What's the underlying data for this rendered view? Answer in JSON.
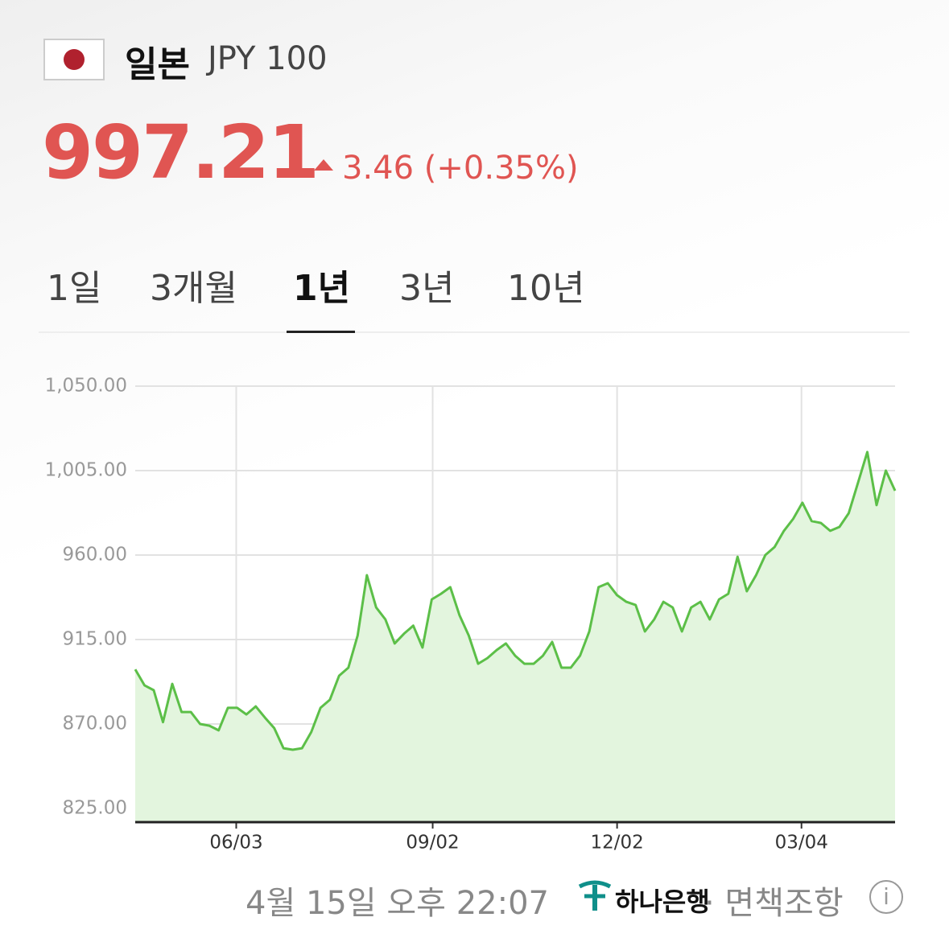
{
  "header": {
    "title": "일본",
    "currency": "JPY 100",
    "price": "997.21",
    "change": "3.46 (+0.35%)"
  },
  "tabs": [
    "1일",
    "3개월",
    "1년",
    "3년",
    "10년"
  ],
  "chart_data": {
    "type": "area",
    "color": "#5cbf48",
    "fill": "#e3f5de",
    "grid": true,
    "values": [
      899.1,
      890.6,
      888.0,
      871.0,
      891.4,
      876.4,
      876.4,
      870.0,
      869.1,
      866.6,
      878.6,
      878.6,
      875.1,
      879.4,
      873.4,
      867.8,
      857.1,
      856.3,
      857.1,
      865.7,
      878.6,
      882.9,
      895.7,
      900.0,
      917.1,
      949.3,
      932.1,
      925.7,
      912.9,
      918.1,
      922.4,
      910.7,
      936.4,
      939.4,
      942.9,
      927.9,
      917.1,
      902.1,
      905.1,
      909.4,
      912.9,
      906.4,
      902.1,
      902.1,
      906.4,
      913.7,
      900.0,
      900.0,
      906.4,
      919.3,
      942.9,
      945.0,
      938.6,
      935.1,
      933.4,
      919.3,
      925.7,
      935.1,
      932.1,
      919.3,
      932.1,
      935.1,
      925.7,
      936.4,
      939.4,
      959.1,
      940.7,
      949.3,
      960.0,
      964.3,
      972.9,
      979.3,
      987.9,
      978.1,
      977.1,
      972.9,
      975.0,
      982.3,
      998.6,
      1014.9,
      986.6,
      1005.0,
      994.3
    ],
    "xlim": [
      0,
      82
    ],
    "xticks": [
      {
        "value": 10.9,
        "label": "06/03"
      },
      {
        "value": 32.1,
        "label": "09/02"
      },
      {
        "value": 52,
        "label": "12/02"
      },
      {
        "value": 71.9,
        "label": "03/04"
      }
    ],
    "ylim": [
      825,
      1050
    ],
    "yticks": [
      {
        "value": 1050,
        "label": "1,050.00"
      },
      {
        "value": 1005,
        "label": "1,005.00"
      },
      {
        "value": 960,
        "label": "960.00"
      },
      {
        "value": 915,
        "label": "915.00"
      },
      {
        "value": 870,
        "label": "870.00"
      },
      {
        "value": 825,
        "label": "825.00"
      }
    ]
  },
  "footer": {
    "timestamp": "4월 15일 오후 22:07",
    "bank": "하나은행",
    "disclaimer": "· 면책조항"
  }
}
